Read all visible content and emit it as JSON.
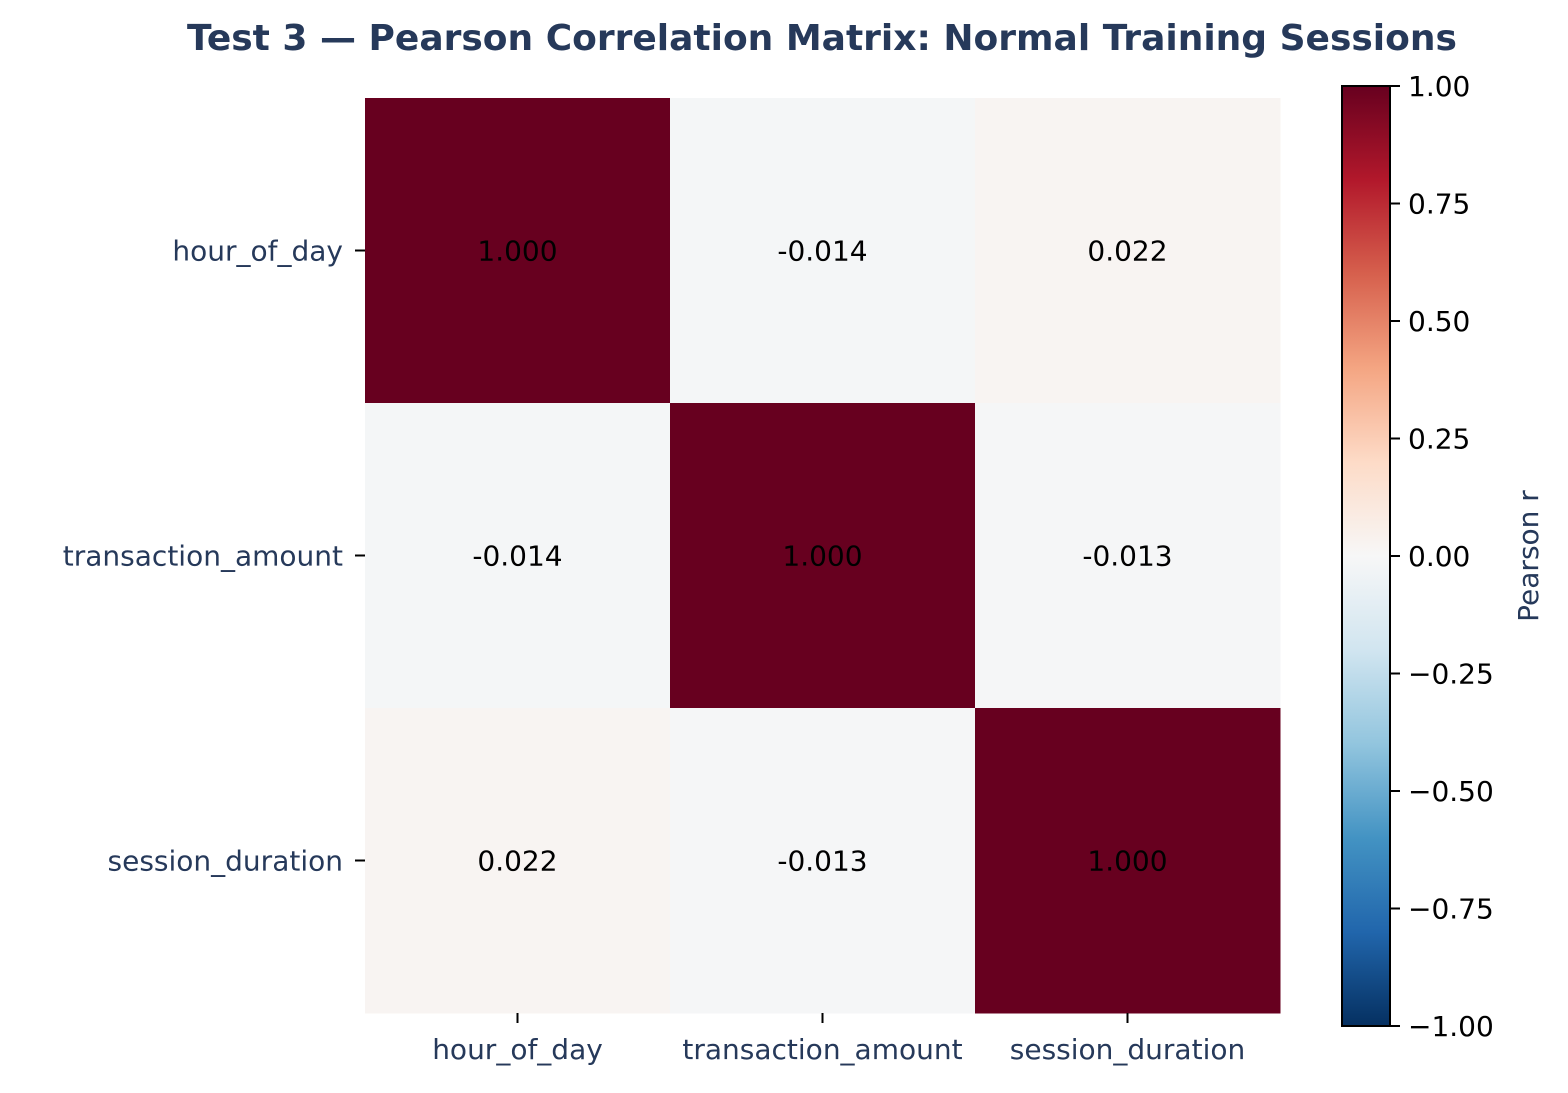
{
  "chart_data": {
    "type": "heatmap",
    "title": "Test 3 — Pearson Correlation Matrix: Normal Training Sessions",
    "x_categories": [
      "hour_of_day",
      "transaction_amount",
      "session_duration"
    ],
    "y_categories": [
      "hour_of_day",
      "transaction_amount",
      "session_duration"
    ],
    "values": [
      [
        1.0,
        -0.014,
        0.022
      ],
      [
        -0.014,
        1.0,
        -0.013
      ],
      [
        0.022,
        -0.013,
        1.0
      ]
    ],
    "cell_labels": [
      [
        "1.000",
        "-0.014",
        "0.022"
      ],
      [
        "-0.014",
        "1.000",
        "-0.013"
      ],
      [
        "0.022",
        "-0.013",
        "1.000"
      ]
    ],
    "colorbar": {
      "label": "Pearson r",
      "range": [
        -1,
        1
      ],
      "ticks": [
        1.0,
        0.75,
        0.5,
        0.25,
        0.0,
        -0.25,
        -0.5,
        -0.75,
        -1.0
      ],
      "tick_labels": [
        "1.00",
        "0.75",
        "0.50",
        "0.25",
        "0.00",
        "−0.25",
        "−0.50",
        "−0.75",
        "−1.00"
      ],
      "colormap": "RdBu_r"
    },
    "colors": {
      "title": "#26395a",
      "axis_label": "#26395a",
      "cell_text": "#000000"
    }
  }
}
